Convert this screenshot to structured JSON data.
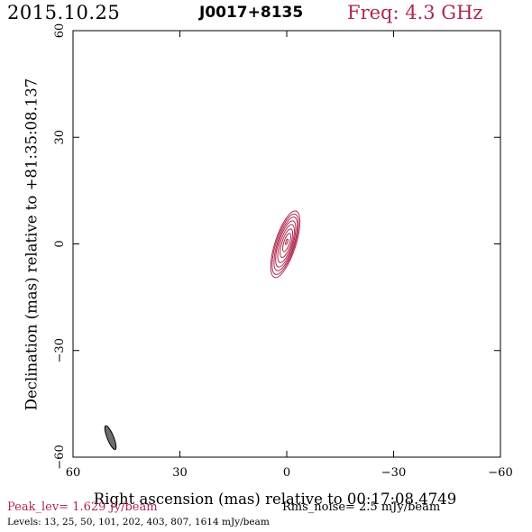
{
  "header": {
    "date": "2015.10.25",
    "source": "J0017+8135",
    "frequency": "Freq: 4.3 GHz"
  },
  "footer": {
    "peak": "Peak_lev=  1.629 Jy/beam",
    "rms": "Rms_noise=  2.5 mJy/beam",
    "levels": "Levels:  13,  25,  50, 101, 202, 403, 807, 1614 mJy/beam"
  },
  "colors": {
    "contour": "#b0284c",
    "beam": "#6e6e6e",
    "accent": "#b0284c"
  },
  "chart_data": {
    "type": "contour",
    "title": "J0017+8135",
    "xlabel": "Right ascension (mas) relative to 00:17:08.4749",
    "ylabel": "Declination (mas) relative to +81:35:08.137",
    "xlim": [
      60,
      -60
    ],
    "ylim": [
      -60,
      60
    ],
    "xticks": [
      60,
      30,
      0,
      -30,
      -60
    ],
    "yticks": [
      60,
      30,
      0,
      -30,
      -60
    ],
    "xtick_labels": [
      "60",
      "30",
      "0",
      "−30",
      "−60"
    ],
    "ytick_labels": [
      "60",
      "30",
      "0",
      "−30",
      "−60"
    ],
    "minor_ticks": false,
    "contour_levels_mJy": [
      13,
      25,
      50,
      101,
      202,
      403,
      807,
      1614
    ],
    "peak_Jy_per_beam": 1.629,
    "rms_mJy_per_beam": 2.5,
    "contours": [
      {
        "level": 13,
        "center": [
          0.4,
          -0.1
        ],
        "major": 9.8,
        "minor": 2.9,
        "pa": 18
      },
      {
        "level": 25,
        "center": [
          0.4,
          -0.1
        ],
        "major": 8.9,
        "minor": 2.6,
        "pa": 18
      },
      {
        "level": 50,
        "center": [
          0.3,
          0.0
        ],
        "major": 7.9,
        "minor": 2.3,
        "pa": 18
      },
      {
        "level": 101,
        "center": [
          0.3,
          0.0
        ],
        "major": 6.8,
        "minor": 2.0,
        "pa": 18
      },
      {
        "level": 202,
        "center": [
          0.2,
          0.1
        ],
        "major": 5.6,
        "minor": 1.65,
        "pa": 18
      },
      {
        "level": 403,
        "center": [
          0.1,
          0.2
        ],
        "major": 4.2,
        "minor": 1.25,
        "pa": 18
      },
      {
        "level": 807,
        "center": [
          0.0,
          0.4
        ],
        "major": 2.7,
        "minor": 0.8,
        "pa": 18
      },
      {
        "level": 1614,
        "center": [
          0.0,
          0.6
        ],
        "major": 0.8,
        "minor": 0.25,
        "pa": 18
      }
    ],
    "beam": {
      "center": [
        49.5,
        -54.5
      ],
      "major": 3.6,
      "minor": 0.9,
      "pa": 22
    }
  }
}
